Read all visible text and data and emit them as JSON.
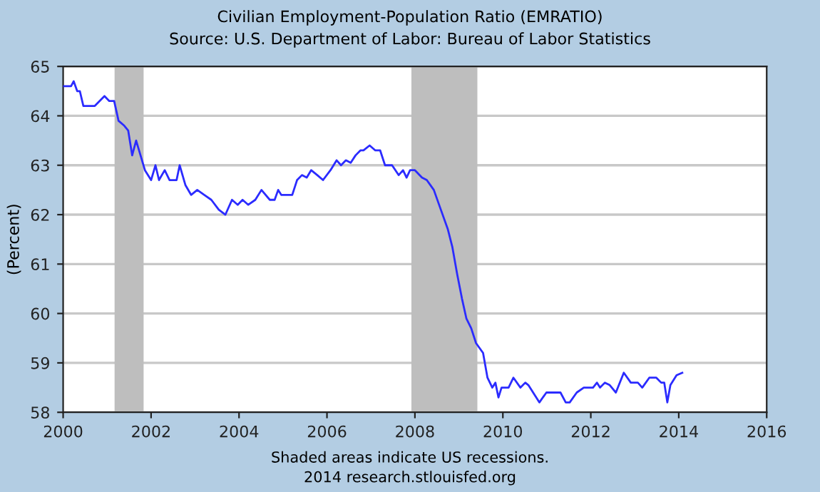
{
  "chart_data": {
    "type": "line",
    "title": "Civilian Employment-Population Ratio (EMRATIO)",
    "subtitle": "Source: U.S. Department of Labor: Bureau of Labor Statistics",
    "ylabel": "(Percent)",
    "annotations": [
      "Shaded areas indicate US recessions.",
      "2014 research.stlouisfed.org"
    ],
    "series": [
      {
        "color": "#2b2bff",
        "x": [
          2000.0,
          2000.18,
          2000.24,
          2000.32,
          2000.38,
          2000.46,
          2000.72,
          2000.94,
          2001.05,
          2001.16,
          2001.26,
          2001.39,
          2001.48,
          2001.57,
          2001.66,
          2001.76,
          2001.86,
          2002.0,
          2002.1,
          2002.18,
          2002.31,
          2002.42,
          2002.58,
          2002.65,
          2002.78,
          2002.91,
          2003.05,
          2003.21,
          2003.37,
          2003.54,
          2003.69,
          2003.84,
          2003.97,
          2004.08,
          2004.21,
          2004.37,
          2004.51,
          2004.7,
          2004.81,
          2004.89,
          2004.96,
          2005.21,
          2005.32,
          2005.43,
          2005.54,
          2005.64,
          2005.78,
          2005.91,
          2006.08,
          2006.22,
          2006.32,
          2006.43,
          2006.54,
          2006.65,
          2006.76,
          2006.83,
          2006.97,
          2007.1,
          2007.21,
          2007.32,
          2007.48,
          2007.63,
          2007.73,
          2007.81,
          2007.89,
          2008.0,
          2008.16,
          2008.27,
          2008.43,
          2008.59,
          2008.75,
          2008.85,
          2008.96,
          2009.07,
          2009.17,
          2009.28,
          2009.39,
          2009.55,
          2009.65,
          2009.76,
          2009.83,
          2009.9,
          2009.97,
          2010.13,
          2010.24,
          2010.4,
          2010.51,
          2010.58,
          2010.83,
          2010.99,
          2011.31,
          2011.43,
          2011.52,
          2011.68,
          2011.84,
          2012.05,
          2012.14,
          2012.21,
          2012.32,
          2012.43,
          2012.57,
          2012.75,
          2012.91,
          2013.07,
          2013.17,
          2013.33,
          2013.49,
          2013.6,
          2013.67,
          2013.74,
          2013.81,
          2013.95,
          2014.08
        ],
        "values": [
          64.6,
          64.6,
          64.7,
          64.5,
          64.5,
          64.2,
          64.2,
          64.4,
          64.3,
          64.3,
          63.9,
          63.8,
          63.7,
          63.2,
          63.5,
          63.2,
          62.9,
          62.7,
          63.0,
          62.7,
          62.9,
          62.7,
          62.7,
          63.0,
          62.6,
          62.4,
          62.5,
          62.4,
          62.3,
          62.1,
          62.0,
          62.3,
          62.2,
          62.3,
          62.2,
          62.3,
          62.5,
          62.3,
          62.3,
          62.5,
          62.4,
          62.4,
          62.7,
          62.8,
          62.75,
          62.9,
          62.8,
          62.7,
          62.9,
          63.1,
          63.0,
          63.1,
          63.05,
          63.2,
          63.3,
          63.3,
          63.4,
          63.3,
          63.3,
          63.0,
          63.0,
          62.8,
          62.9,
          62.75,
          62.9,
          62.9,
          62.75,
          62.7,
          62.5,
          62.1,
          61.7,
          61.35,
          60.8,
          60.3,
          59.9,
          59.7,
          59.4,
          59.2,
          58.7,
          58.5,
          58.6,
          58.3,
          58.5,
          58.5,
          58.7,
          58.5,
          58.6,
          58.55,
          58.2,
          58.4,
          58.4,
          58.2,
          58.2,
          58.4,
          58.5,
          58.5,
          58.6,
          58.5,
          58.6,
          58.55,
          58.4,
          58.8,
          58.6,
          58.6,
          58.5,
          58.7,
          58.7,
          58.6,
          58.6,
          58.2,
          58.55,
          58.75,
          58.8
        ]
      }
    ],
    "bands": [
      {
        "axis": "x",
        "from": 2001.17,
        "to": 2001.83,
        "color": "#bebebe"
      },
      {
        "axis": "x",
        "from": 2007.92,
        "to": 2009.42,
        "color": "#bebebe"
      }
    ],
    "xlim": [
      2000,
      2016
    ],
    "xticks": [
      2000,
      2002,
      2004,
      2006,
      2008,
      2010,
      2012,
      2014,
      2016
    ],
    "ylim": [
      58,
      65
    ],
    "yticks": [
      58,
      59,
      60,
      61,
      62,
      63,
      64,
      65
    ],
    "grid": "y",
    "legend": false
  }
}
